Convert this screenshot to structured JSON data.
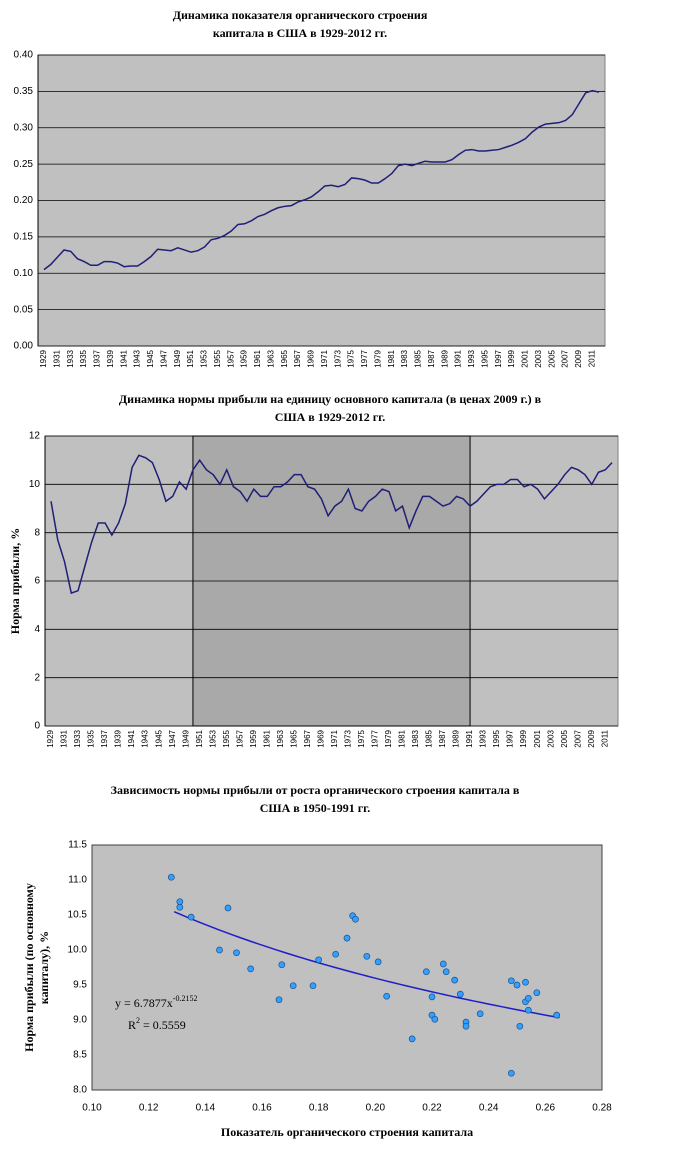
{
  "chart_data": [
    {
      "type": "line",
      "title": [
        "Динамика показателя органического строения",
        "капитала в США в 1929-2012 гг."
      ],
      "x": [
        1929,
        1930,
        1931,
        1932,
        1933,
        1934,
        1935,
        1936,
        1937,
        1938,
        1939,
        1940,
        1941,
        1942,
        1943,
        1944,
        1945,
        1946,
        1947,
        1948,
        1949,
        1950,
        1951,
        1952,
        1953,
        1954,
        1955,
        1956,
        1957,
        1958,
        1959,
        1960,
        1961,
        1962,
        1963,
        1964,
        1965,
        1966,
        1967,
        1968,
        1969,
        1970,
        1971,
        1972,
        1973,
        1974,
        1975,
        1976,
        1977,
        1978,
        1979,
        1980,
        1981,
        1982,
        1983,
        1984,
        1985,
        1986,
        1987,
        1988,
        1989,
        1990,
        1991,
        1992,
        1993,
        1994,
        1995,
        1996,
        1997,
        1998,
        1999,
        2000,
        2001,
        2002,
        2003,
        2004,
        2005,
        2006,
        2007,
        2008,
        2009,
        2010,
        2011,
        2012
      ],
      "series": [
        {
          "color": "#1f1f78",
          "values": [
            0.105,
            0.112,
            0.122,
            0.132,
            0.13,
            0.12,
            0.116,
            0.111,
            0.111,
            0.116,
            0.116,
            0.114,
            0.109,
            0.11,
            0.11,
            0.116,
            0.123,
            0.133,
            0.132,
            0.131,
            0.135,
            0.132,
            0.129,
            0.131,
            0.136,
            0.146,
            0.148,
            0.152,
            0.158,
            0.167,
            0.168,
            0.172,
            0.178,
            0.181,
            0.186,
            0.19,
            0.192,
            0.193,
            0.198,
            0.201,
            0.205,
            0.212,
            0.22,
            0.221,
            0.219,
            0.222,
            0.231,
            0.23,
            0.228,
            0.224,
            0.224,
            0.23,
            0.237,
            0.248,
            0.25,
            0.248,
            0.251,
            0.254,
            0.253,
            0.253,
            0.253,
            0.256,
            0.263,
            0.269,
            0.27,
            0.268,
            0.268,
            0.269,
            0.27,
            0.273,
            0.276,
            0.28,
            0.285,
            0.294,
            0.301,
            0.305,
            0.306,
            0.307,
            0.31,
            0.318,
            0.333,
            0.348,
            0.351,
            0.349
          ]
        }
      ],
      "xlim": [
        1929,
        2012
      ],
      "xticks": [
        1929,
        1931,
        1933,
        1935,
        1937,
        1939,
        1941,
        1943,
        1945,
        1947,
        1949,
        1951,
        1953,
        1955,
        1957,
        1959,
        1961,
        1963,
        1965,
        1967,
        1969,
        1971,
        1973,
        1975,
        1977,
        1979,
        1981,
        1983,
        1985,
        1987,
        1989,
        1991,
        1993,
        1995,
        1997,
        1999,
        2001,
        2003,
        2005,
        2007,
        2009,
        2011
      ],
      "ylim": [
        0,
        0.4
      ],
      "yticks": [
        {
          "value": 0,
          "label": "0.00"
        },
        {
          "value": 0.05,
          "label": "0.05"
        },
        {
          "value": 0.1,
          "label": "0.10"
        },
        {
          "value": 0.15,
          "label": "0.15"
        },
        {
          "value": 0.2,
          "label": "0.20"
        },
        {
          "value": 0.25,
          "label": "0.25"
        },
        {
          "value": 0.3,
          "label": "0.30"
        },
        {
          "value": 0.35,
          "label": "0.35"
        },
        {
          "value": 0.4,
          "label": "0.40"
        }
      ],
      "grid": true,
      "plot_color": "#c0c0c0"
    },
    {
      "type": "line",
      "title": [
        "Динамика нормы прибыли на единицу основного капитала (в ценах 2009 г.) в",
        "США в 1929-2012 гг."
      ],
      "y_label": "Норма прибыли, %",
      "x": [
        1929,
        1930,
        1931,
        1932,
        1933,
        1934,
        1935,
        1936,
        1937,
        1938,
        1939,
        1940,
        1941,
        1942,
        1943,
        1944,
        1945,
        1946,
        1947,
        1948,
        1949,
        1950,
        1951,
        1952,
        1953,
        1954,
        1955,
        1956,
        1957,
        1958,
        1959,
        1960,
        1961,
        1962,
        1963,
        1964,
        1965,
        1966,
        1967,
        1968,
        1969,
        1970,
        1971,
        1972,
        1973,
        1974,
        1975,
        1976,
        1977,
        1978,
        1979,
        1980,
        1981,
        1982,
        1983,
        1984,
        1985,
        1986,
        1987,
        1988,
        1989,
        1990,
        1991,
        1992,
        1993,
        1994,
        1995,
        1996,
        1997,
        1998,
        1999,
        2000,
        2001,
        2002,
        2003,
        2004,
        2005,
        2006,
        2007,
        2008,
        2009,
        2010,
        2011,
        2012
      ],
      "series": [
        {
          "color": "#1f1f78",
          "values": [
            9.3,
            7.7,
            6.8,
            5.5,
            5.6,
            6.6,
            7.6,
            8.4,
            8.4,
            7.9,
            8.4,
            9.2,
            10.7,
            11.2,
            11.1,
            10.9,
            10.2,
            9.3,
            9.5,
            10.1,
            9.8,
            10.6,
            11.0,
            10.6,
            10.4,
            10.0,
            10.6,
            9.9,
            9.7,
            9.3,
            9.8,
            9.5,
            9.5,
            9.9,
            9.9,
            10.1,
            10.4,
            10.4,
            9.9,
            9.8,
            9.4,
            8.7,
            9.1,
            9.3,
            9.8,
            9.0,
            8.9,
            9.3,
            9.5,
            9.8,
            9.7,
            8.9,
            9.1,
            8.2,
            8.9,
            9.5,
            9.5,
            9.3,
            9.1,
            9.2,
            9.5,
            9.4,
            9.1,
            9.3,
            9.6,
            9.9,
            10.0,
            10.0,
            10.2,
            10.2,
            9.9,
            10.0,
            9.8,
            9.4,
            9.7,
            10.0,
            10.4,
            10.7,
            10.6,
            10.4,
            10.0,
            10.5,
            10.6,
            10.9
          ]
        }
      ],
      "xlim": [
        1929,
        2012
      ],
      "xticks": [
        1929,
        1931,
        1933,
        1935,
        1937,
        1939,
        1941,
        1943,
        1945,
        1947,
        1949,
        1951,
        1953,
        1955,
        1957,
        1959,
        1961,
        1963,
        1965,
        1967,
        1969,
        1971,
        1973,
        1975,
        1977,
        1979,
        1981,
        1983,
        1985,
        1987,
        1989,
        1991,
        1993,
        1995,
        1997,
        1999,
        2001,
        2003,
        2005,
        2007,
        2009,
        2011
      ],
      "ylim": [
        0,
        12
      ],
      "yticks": [
        0,
        2,
        4,
        6,
        8,
        10,
        12
      ],
      "grid": true,
      "plot_color": "#c0c0c0",
      "highlight": [
        1950,
        1991
      ],
      "highlight_color": "#a9a9a9"
    },
    {
      "type": "scatter",
      "title": [
        "Зависимость нормы прибыли от роста органического строения капитала в",
        "США в 1950-1991 гг."
      ],
      "y_label": [
        "Норма прибыли (по основному",
        "капиталу), %"
      ],
      "x_label": "Показатель органического строения капитала",
      "x": [
        0.128,
        0.131,
        0.131,
        0.135,
        0.148,
        0.145,
        0.151,
        0.156,
        0.167,
        0.166,
        0.171,
        0.178,
        0.18,
        0.186,
        0.19,
        0.192,
        0.193,
        0.197,
        0.201,
        0.204,
        0.213,
        0.218,
        0.22,
        0.22,
        0.221,
        0.224,
        0.225,
        0.228,
        0.23,
        0.232,
        0.232,
        0.237,
        0.248,
        0.248,
        0.25,
        0.251,
        0.253,
        0.253,
        0.254,
        0.254,
        0.257,
        0.264
      ],
      "values": [
        11.04,
        10.69,
        10.61,
        10.47,
        10.6,
        10.0,
        9.96,
        9.73,
        9.79,
        9.29,
        9.49,
        9.49,
        9.86,
        9.94,
        10.17,
        10.49,
        10.44,
        9.91,
        9.83,
        9.34,
        8.73,
        9.69,
        9.07,
        9.33,
        9.01,
        9.8,
        9.69,
        9.57,
        9.37,
        8.97,
        8.91,
        9.09,
        9.56,
        8.24,
        9.5,
        8.91,
        9.54,
        9.26,
        9.31,
        9.14,
        9.39,
        9.07
      ],
      "color": "#33a0ff",
      "xlim": [
        0.1,
        0.28
      ],
      "xticks": [
        {
          "value": 0.1,
          "label": "0.10"
        },
        {
          "value": 0.12,
          "label": "0.12"
        },
        {
          "value": 0.14,
          "label": "0.14"
        },
        {
          "value": 0.16,
          "label": "0.16"
        },
        {
          "value": 0.18,
          "label": "0.18"
        },
        {
          "value": 0.2,
          "label": "0.20"
        },
        {
          "value": 0.22,
          "label": "0.22"
        },
        {
          "value": 0.24,
          "label": "0.24"
        },
        {
          "value": 0.26,
          "label": "0.26"
        },
        {
          "value": 0.28,
          "label": "0.28"
        }
      ],
      "ylim": [
        8,
        11.5
      ],
      "yticks": [
        {
          "value": 8,
          "label": "8.0"
        },
        {
          "value": 8.5,
          "label": "8.5"
        },
        {
          "value": 9,
          "label": "9.0"
        },
        {
          "value": 9.5,
          "label": "9.5"
        },
        {
          "value": 10,
          "label": "10.0"
        },
        {
          "value": 10.5,
          "label": "10.5"
        },
        {
          "value": 11,
          "label": "11.0"
        },
        {
          "value": 11.5,
          "label": "11.5"
        }
      ],
      "grid": false,
      "plot_color": "#c0c0c0",
      "trendline": {
        "coef": 6.7877,
        "exp": -0.2152,
        "xlim": [
          0.129,
          0.265
        ],
        "color": "#1e1ec8"
      },
      "equation": "y = 6.7877x",
      "equation_exp": "-0.2152",
      "r2_label": "R",
      "r2_sup": "2",
      "r2_text": " = 0.5559"
    }
  ]
}
